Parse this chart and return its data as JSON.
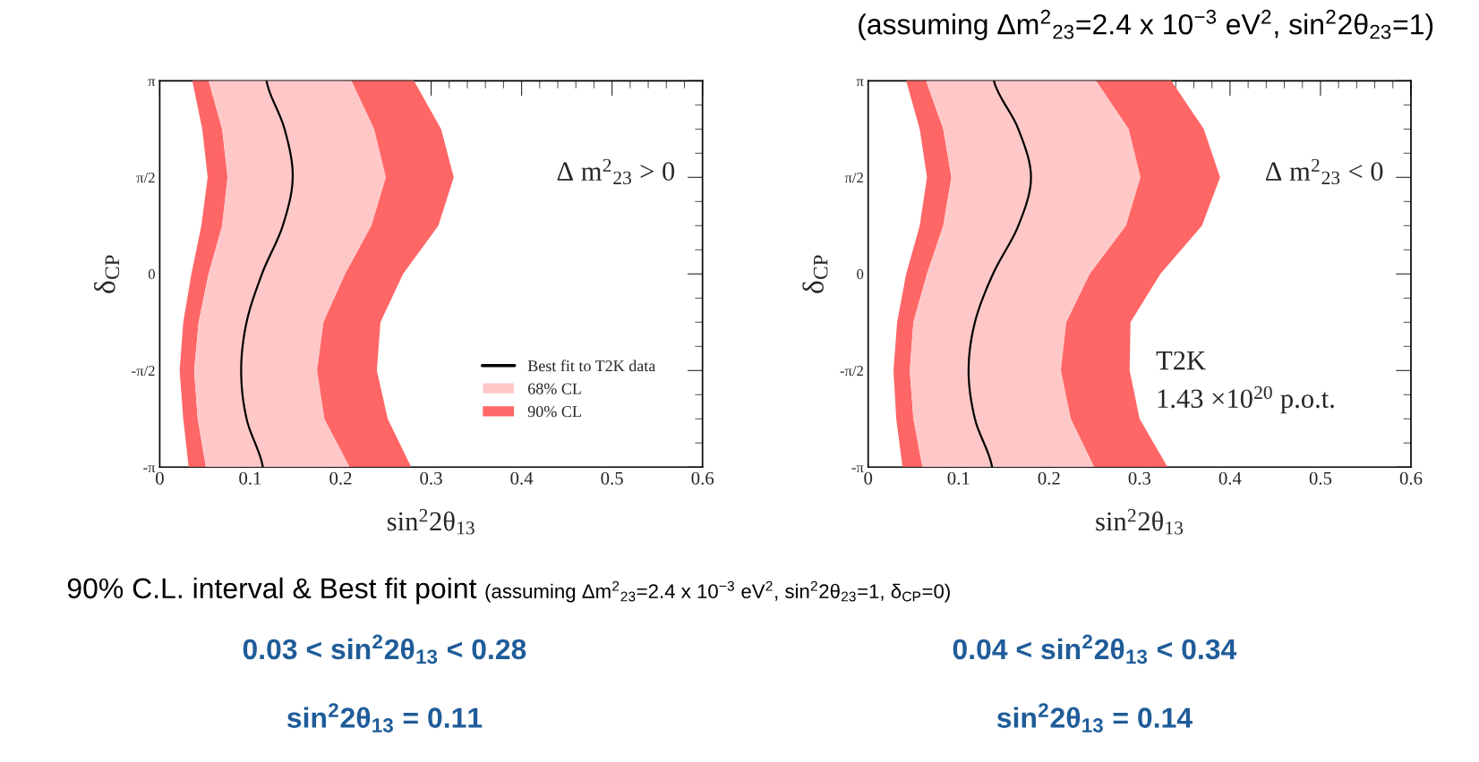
{
  "chart_data": [
    {
      "type": "line",
      "orientation": "horizontal",
      "stacked": true,
      "xlabel": "sin$^{2}$2θ$_{13}$",
      "ylabel": "δ$_{CP}$",
      "x": [
        -3.1416,
        -2.3562,
        -1.5708,
        -0.7854,
        0,
        0.7854,
        1.5708,
        2.3562,
        3.1416
      ],
      "series": [
        {
          "name": "Best fit to T2K data",
          "type": "line",
          "color": "#000000",
          "values": [
            0.114,
            0.096,
            0.09,
            0.096,
            0.113,
            0.136,
            0.147,
            0.138,
            0.118
          ]
        },
        {
          "type": "area",
          "color": "#ffffff",
          "values": [
            0.032,
            0.026,
            0.022,
            0.026,
            0.035,
            0.046,
            0.053,
            0.047,
            0.036
          ]
        },
        {
          "name": "90% CL",
          "type": "area",
          "color": "#ff6666",
          "values": [
            0.019,
            0.016,
            0.016,
            0.017,
            0.019,
            0.023,
            0.022,
            0.022,
            0.018
          ]
        },
        {
          "name": "68% CL",
          "type": "area",
          "color": "#ffc8c8",
          "values": [
            0.159,
            0.14,
            0.136,
            0.138,
            0.151,
            0.165,
            0.175,
            0.168,
            0.158
          ]
        },
        {
          "type": "area",
          "color": "#ff6666",
          "values": [
            0.068,
            0.07,
            0.066,
            0.063,
            0.064,
            0.074,
            0.075,
            0.074,
            0.069
          ]
        }
      ],
      "xlim": [
        0,
        0.6
      ],
      "xticks": [
        0,
        0.1,
        0.2,
        0.3,
        0.4,
        0.5,
        0.6
      ],
      "ylim": [
        -3.1416,
        3.1416
      ],
      "yticks": [
        {
          "value": -3.1416,
          "label": "-π"
        },
        {
          "value": -1.5708,
          "label": "-π/2"
        },
        {
          "value": 0,
          "label": "0"
        },
        {
          "value": 1.5708,
          "label": "π/2"
        },
        {
          "value": 3.1416,
          "label": "π"
        }
      ],
      "annotations": [
        "Δ m$^{2}$$_{23}$ > 0"
      ],
      "legend": "bottom right",
      "grid": false
    },
    {
      "type": "line",
      "orientation": "horizontal",
      "stacked": true,
      "xlabel": "sin$^{2}$2θ$_{13}$",
      "ylabel": "δ$_{CP}$",
      "x": [
        -3.1416,
        -2.3562,
        -1.5708,
        -0.7854,
        0,
        0.7854,
        1.5708,
        2.3562,
        3.1416
      ],
      "series": [
        {
          "type": "line",
          "color": "#000000",
          "values": [
            0.137,
            0.118,
            0.111,
            0.118,
            0.138,
            0.166,
            0.18,
            0.166,
            0.139
          ]
        },
        {
          "type": "area",
          "color": "#ffffff",
          "values": [
            0.038,
            0.031,
            0.028,
            0.032,
            0.042,
            0.057,
            0.065,
            0.057,
            0.042
          ]
        },
        {
          "type": "area",
          "color": "#ff6666",
          "values": [
            0.022,
            0.019,
            0.018,
            0.018,
            0.023,
            0.026,
            0.027,
            0.026,
            0.022
          ]
        },
        {
          "type": "area",
          "color": "#ffc8c8",
          "values": [
            0.19,
            0.174,
            0.167,
            0.169,
            0.18,
            0.202,
            0.209,
            0.205,
            0.188
          ]
        },
        {
          "type": "area",
          "color": "#ff6666",
          "values": [
            0.081,
            0.076,
            0.076,
            0.071,
            0.078,
            0.084,
            0.088,
            0.083,
            0.083
          ]
        }
      ],
      "xlim": [
        0,
        0.6
      ],
      "xticks": [
        0,
        0.1,
        0.2,
        0.3,
        0.4,
        0.5,
        0.6
      ],
      "ylim": [
        -3.1416,
        3.1416
      ],
      "yticks": [
        {
          "value": -3.1416,
          "label": "-π"
        },
        {
          "value": -1.5708,
          "label": "-π/2"
        },
        {
          "value": 0,
          "label": "0"
        },
        {
          "value": 1.5708,
          "label": "π/2"
        },
        {
          "value": 3.1416,
          "label": "π"
        }
      ],
      "annotations": [
        "Δ m$^{2}$$_{23}$ < 0",
        "T2K\n1.43 ×10$^{20}$ p.o.t."
      ],
      "legend": false,
      "grid": false
    },
    {
      "type": "other",
      "annotations": [
        "(assuming Δm$^{2}$$_{23}$=2.4 x 10$^{−3}$ eV$^{2}$, sin$^{2}$2θ$_{23}$=1)",
        "90% C.L. interval & Best fit point",
        "(assuming Δm$^{2}$$_{23}$=2.4 x 10$^{−3}$ eV$^{2}$, sin$^{2}$2θ$_{23}$=1, δ$_{CP}$=0)",
        "0.03 < sin$^{2}$2θ$_{13}$ < 0.28",
        "sin$^{2}$2θ$_{13}$ = 0.11",
        "0.04 < sin$^{2}$2θ$_{13}$ < 0.34",
        "sin$^{2}$2θ$_{13}$ = 0.14"
      ]
    }
  ]
}
